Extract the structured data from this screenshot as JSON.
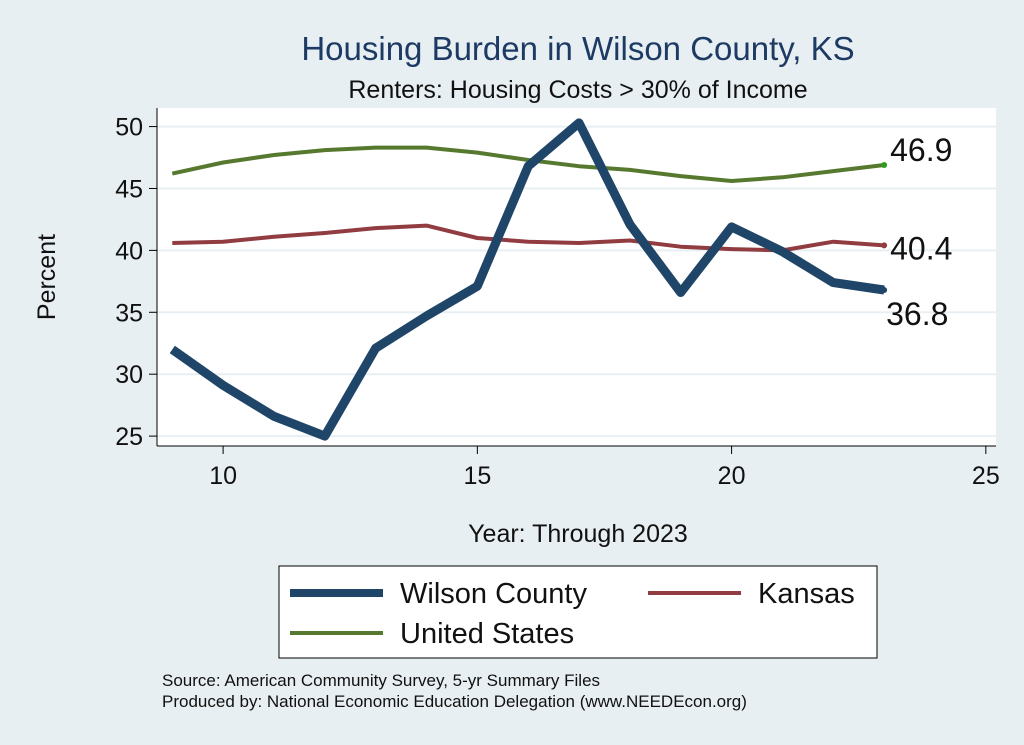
{
  "chart_data": {
    "type": "line",
    "title": "Housing Burden in Wilson County, KS",
    "subtitle": "Renters: Housing Costs > 30% of Income",
    "xlabel": "Year: Through 2023",
    "ylabel": "Percent",
    "xlim": [
      8.7,
      25.2
    ],
    "ylim": [
      24.2,
      51.5
    ],
    "xticks": [
      10,
      15,
      20,
      25
    ],
    "yticks": [
      25,
      30,
      35,
      40,
      45,
      50
    ],
    "x": [
      9,
      10,
      11,
      12,
      13,
      14,
      15,
      16,
      17,
      18,
      19,
      20,
      21,
      22,
      23
    ],
    "series": [
      {
        "name": "Wilson County",
        "color": "#1f4568",
        "values": [
          32.0,
          29.1,
          26.6,
          25.0,
          32.1,
          34.7,
          37.1,
          46.8,
          50.3,
          42.1,
          36.6,
          41.9,
          39.9,
          37.4,
          36.8
        ],
        "end_label": "36.8"
      },
      {
        "name": "Kansas",
        "color": "#903c40",
        "values": [
          40.6,
          40.7,
          41.1,
          41.4,
          41.8,
          42.0,
          41.0,
          40.7,
          40.6,
          40.8,
          40.3,
          40.1,
          40.0,
          40.7,
          40.4
        ],
        "end_label": "40.4"
      },
      {
        "name": "United States",
        "color": "#56792f",
        "values": [
          46.2,
          47.1,
          47.7,
          48.1,
          48.3,
          48.3,
          47.9,
          47.3,
          46.8,
          46.5,
          46.0,
          45.6,
          45.9,
          46.4,
          46.9
        ],
        "end_label": "46.9"
      }
    ],
    "legend": [
      "Wilson County",
      "Kansas",
      "United States"
    ]
  },
  "footer": {
    "source": "Source: American Community Survey, 5-yr Summary Files",
    "produced_by": "Produced by: National Economic Education Delegation (www.NEEDEcon.org)"
  },
  "colors": {
    "background": "#e8eff2",
    "plot_background": "#ffffff",
    "gridline": "#e8eff2",
    "title": "#1c3a63"
  }
}
